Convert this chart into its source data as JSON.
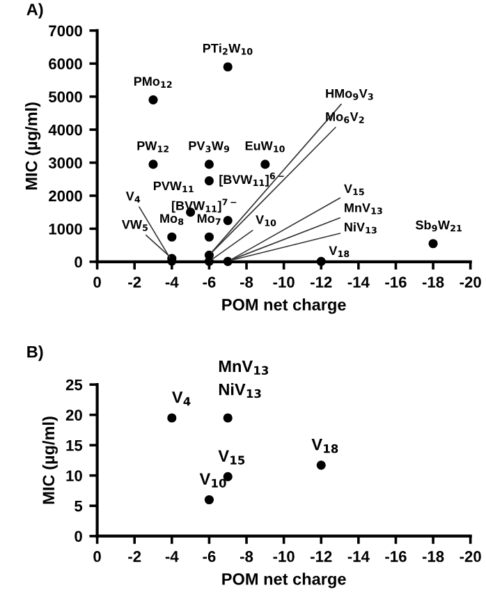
{
  "chart_data": [
    {
      "type": "scatter",
      "title": "A)",
      "xlabel": "POM net charge",
      "ylabel": "MIC (µg/ml)",
      "color": "#000000",
      "marker": "circle",
      "grid": false,
      "legend": false,
      "x": [
        -7,
        -3,
        -3,
        -6,
        -9,
        -6,
        -5,
        -7,
        -4,
        -6,
        -18,
        -12,
        -4,
        -4,
        -6,
        -6,
        -7
      ],
      "values": [
        5900,
        4900,
        2950,
        2950,
        2950,
        2450,
        1500,
        1250,
        750,
        750,
        550,
        10,
        20,
        100,
        200,
        10,
        10
      ],
      "xlim": [
        0,
        -20
      ],
      "xticks": [
        0,
        -2,
        -4,
        -6,
        -8,
        -10,
        -12,
        -14,
        -16,
        -18,
        -20
      ],
      "ylim": [
        0,
        7000
      ],
      "yticks": [
        0,
        1000,
        2000,
        3000,
        4000,
        5000,
        6000,
        7000
      ],
      "annotations": [
        {
          "text": "PTi$_{2}$W$_{10}$",
          "x": -7,
          "y": 5900
        },
        {
          "text": "PMo$_{12}$",
          "x": -3,
          "y": 4900
        },
        {
          "text": "PW$_{12}$",
          "x": -3,
          "y": 2950
        },
        {
          "text": "PV$_{3}$W$_{9}$",
          "x": -6,
          "y": 2950
        },
        {
          "text": "EuW$_{10}$",
          "x": -9,
          "y": 2950
        },
        {
          "text": "[BVW$_{11}$]$^{6−}$",
          "x": -6,
          "y": 2450
        },
        {
          "text": "PVW$_{11}$",
          "x": -5,
          "y": 1500
        },
        {
          "text": "[BVW$_{11}$]$^{7−}$",
          "x": -7,
          "y": 1250
        },
        {
          "text": "Mo$_{8}$",
          "x": -4,
          "y": 750
        },
        {
          "text": "Mo$_{7}$",
          "x": -6,
          "y": 750
        },
        {
          "text": "Sb$_{9}$W$_{21}$",
          "x": -18,
          "y": 550
        },
        {
          "text": "V$_{18}$",
          "x": -12,
          "y": 10
        },
        {
          "text": "V$_{4}$",
          "x": -4,
          "y": 20
        },
        {
          "text": "VW$_{5}$",
          "x": -4,
          "y": 100
        },
        {
          "text": "HMo$_{9}$V$_{3}$",
          "x": -6,
          "y": 200
        },
        {
          "text": "Mo$_{6}$V$_{2}$",
          "x": -6,
          "y": 200
        },
        {
          "text": "V$_{10}$",
          "x": -6,
          "y": 10
        },
        {
          "text": "V$_{15}$",
          "x": -7,
          "y": 10
        },
        {
          "text": "MnV$_{13}$",
          "x": -7,
          "y": 20
        },
        {
          "text": "NiV$_{13}$",
          "x": -7,
          "y": 20
        }
      ]
    },
    {
      "type": "scatter",
      "title": "B)",
      "xlabel": "POM net charge",
      "ylabel": "MIC (µg/ml)",
      "color": "#000000",
      "marker": "circle",
      "grid": false,
      "legend": false,
      "x": [
        -4,
        -7,
        -7,
        -6,
        -12
      ],
      "values": [
        19.5,
        19.5,
        9.8,
        6,
        11.7
      ],
      "xlim": [
        0,
        -20
      ],
      "xticks": [
        0,
        -2,
        -4,
        -6,
        -8,
        -10,
        -12,
        -14,
        -16,
        -18,
        -20
      ],
      "ylim": [
        0,
        25
      ],
      "yticks": [
        0,
        5,
        10,
        15,
        20,
        25
      ],
      "annotations": [
        {
          "text": "V$_{4}$",
          "x": -4,
          "y": 19.5
        },
        {
          "text": "MnV$_{13}$",
          "x": -7,
          "y": 19.5
        },
        {
          "text": "NiV$_{13}$",
          "x": -7,
          "y": 19.5
        },
        {
          "text": "V$_{15}$",
          "x": -7,
          "y": 9.8
        },
        {
          "text": "V$_{10}$",
          "x": -6,
          "y": 6
        },
        {
          "text": "V$_{18}$",
          "x": -12,
          "y": 11.7
        }
      ]
    }
  ]
}
